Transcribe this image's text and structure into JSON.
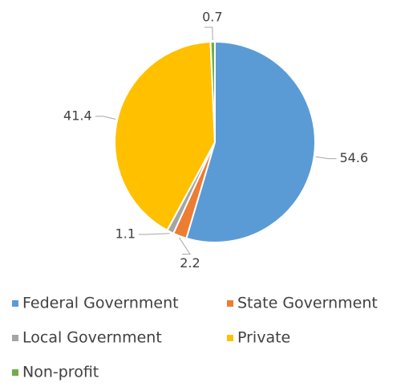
{
  "chart_data": {
    "type": "pie",
    "categories": [
      "Federal Government",
      "State Government",
      "Local Government",
      "Private",
      "Non-profit"
    ],
    "values": [
      54.6,
      2.2,
      1.1,
      41.4,
      0.7
    ],
    "colors": [
      "#5b9bd5",
      "#ed7d31",
      "#a5a5a5",
      "#ffc000",
      "#70ad47"
    ],
    "start_angle": 0,
    "direction": "clockwise",
    "legend": "bottom"
  }
}
